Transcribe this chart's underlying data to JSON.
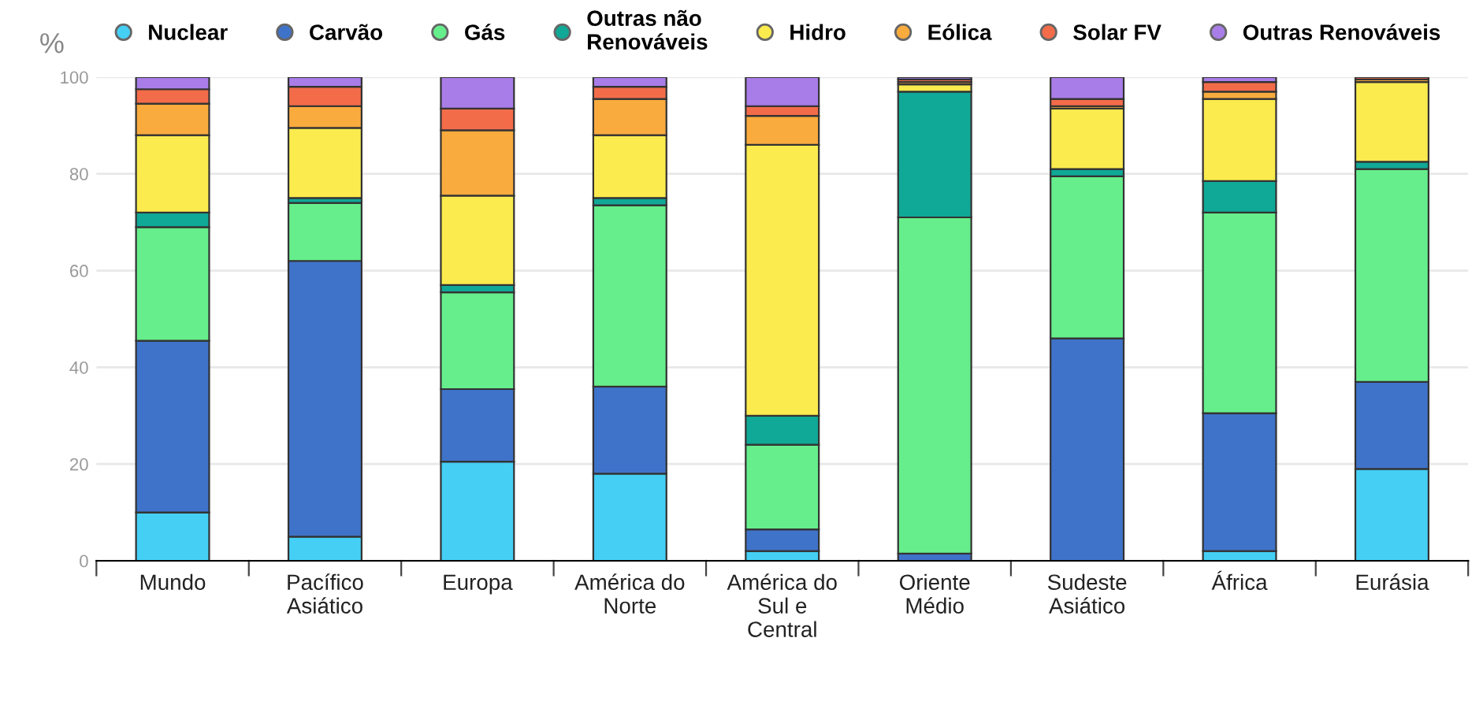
{
  "chart_data": {
    "type": "bar",
    "stacked": true,
    "ylabel": "%",
    "categories": [
      "Mundo",
      "Pacífico\nAsiático",
      "Europa",
      "América do\nNorte",
      "América do\nSul e\nCentral",
      "Oriente\nMédio",
      "Sudeste\nAsiático",
      "África",
      "Eurásia"
    ],
    "series": [
      {
        "name": "Nuclear",
        "color": "#45cff5",
        "values": [
          10,
          5,
          20.5,
          18,
          2,
          null,
          null,
          2,
          19
        ]
      },
      {
        "name": "Carvão",
        "color": "#3f73c9",
        "values": [
          35.5,
          57,
          15,
          18,
          4.5,
          1.5,
          46,
          28.5,
          18
        ]
      },
      {
        "name": "Gás",
        "color": "#66ee8c",
        "values": [
          23.5,
          12,
          20,
          37.5,
          17.5,
          69.5,
          33.5,
          41.5,
          44
        ]
      },
      {
        "name": "Outras não\nRenováveis",
        "color": "#10a896",
        "values": [
          3,
          1,
          1.5,
          1.5,
          6,
          26,
          1.5,
          6.5,
          1.5
        ]
      },
      {
        "name": "Hidro",
        "color": "#fbeb4e",
        "values": [
          16,
          14.5,
          18.5,
          13,
          56,
          1.5,
          12.5,
          17,
          16.5
        ]
      },
      {
        "name": "Eólica",
        "color": "#f9ab3e",
        "values": [
          6.5,
          4.5,
          13.5,
          7.5,
          6,
          0.5,
          0.5,
          1.5,
          0.5
        ]
      },
      {
        "name": "Solar FV",
        "color": "#f36c4a",
        "values": [
          3,
          4,
          4.5,
          2.5,
          2,
          0.5,
          1.5,
          2,
          0.5
        ]
      },
      {
        "name": "Outras Renováveis",
        "color": "#a97de8",
        "values": [
          2.5,
          2,
          6.5,
          2,
          6,
          0.5,
          4.5,
          1,
          null
        ]
      }
    ],
    "ylim": [
      0,
      100
    ],
    "yticks": [
      0,
      20,
      40,
      60,
      80,
      100
    ],
    "grid": "y",
    "legend": "top",
    "marker": "circle"
  }
}
